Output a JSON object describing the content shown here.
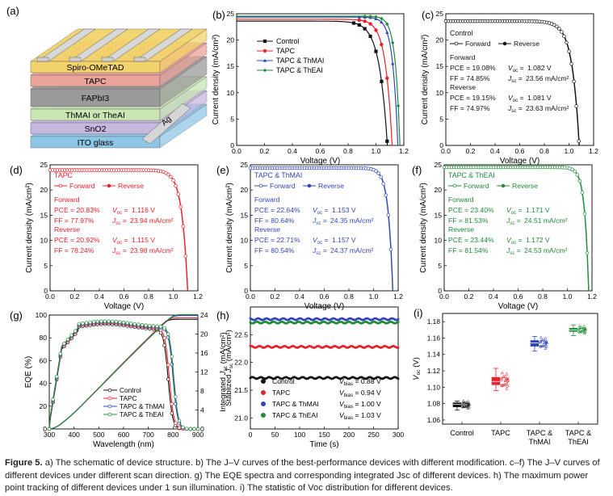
{
  "colors": {
    "black": "#111111",
    "red": "#e8202a",
    "blue": "#3346b8",
    "green": "#1f8a3a"
  },
  "caption": {
    "label": "Figure 5.",
    "text": "a) The schematic of device structure. b) The J–V curves of the best-performance devices with different modification. c–f) The J–V curves of different devices under different scan direction. g) The EQE spectra and corresponding integrated Jsc of different devices. h) The maximum power point tracking of different devices under 1 sun illumination. i) The statistic of Voc distribution for different devices."
  },
  "panel_a": {
    "letter": "(a)",
    "layers": [
      {
        "label": "Spiro-OMeTAD",
        "color": "#f2d36b"
      },
      {
        "label": "TAPC",
        "color": "#e9a39a"
      },
      {
        "label": "FAPbI3",
        "color": "#9a9a9a"
      },
      {
        "label": "ThMAI or TheAI",
        "color": "#c9e6b3"
      },
      {
        "label": "SnO2",
        "color": "#c7b8e0"
      },
      {
        "label": "ITO glass",
        "color": "#8ec7e6"
      }
    ],
    "electrode_label": "Ag"
  },
  "chart_data": [
    {
      "id": "b",
      "letter": "(b)",
      "type": "line",
      "xlabel": "Voltage (V)",
      "ylabel": "Current density (mA/cm²)",
      "xlim": [
        0,
        1.2
      ],
      "ylim": [
        0,
        25
      ],
      "xticks": [
        0.0,
        0.2,
        0.4,
        0.6,
        0.8,
        1.0,
        1.2
      ],
      "yticks": [
        0,
        5,
        10,
        15,
        20,
        25
      ],
      "legend": "top-left",
      "series": [
        {
          "name": "Control",
          "color": "#111111",
          "marker": "square",
          "jsc": 23.6,
          "voc": 1.082,
          "ff": 0.75
        },
        {
          "name": "TAPC",
          "color": "#e8202a",
          "marker": "circle",
          "jsc": 23.95,
          "voc": 1.116,
          "ff": 0.78
        },
        {
          "name": "TAPC & ThMAI",
          "color": "#3346b8",
          "marker": "triangle",
          "jsc": 24.37,
          "voc": 1.157,
          "ff": 0.81
        },
        {
          "name": "TAPC & ThEAI",
          "color": "#1f8a3a",
          "marker": "diamond",
          "jsc": 24.53,
          "voc": 1.172,
          "ff": 0.82
        }
      ]
    },
    {
      "id": "c",
      "letter": "(c)",
      "type": "line",
      "xlabel": "Voltage (V)",
      "ylabel": "Current density (mA/cm²)",
      "xlim": [
        0,
        1.2
      ],
      "ylim": [
        0,
        25
      ],
      "xticks": [
        0.0,
        0.2,
        0.4,
        0.6,
        0.8,
        1.0,
        1.2
      ],
      "yticks": [
        0,
        5,
        10,
        15,
        20,
        25
      ],
      "color": "#111111",
      "device": "Control",
      "legend_forward": "Forward",
      "legend_reverse": "Reverse",
      "forward": {
        "title": "Forward",
        "pce": "PCE = 19.08%",
        "voc": "1.082 V",
        "ff": "FF = 74.85%",
        "jsc": "23.56 mA/cm²"
      },
      "reverse": {
        "title": "Reverse",
        "pce": "PCE = 19.15%",
        "voc": "1.081 V",
        "ff": "FF = 74.97%",
        "jsc": "23.63 mA/cm²"
      },
      "curve": {
        "jsc": 23.6,
        "voc": 1.082,
        "ff": 0.75
      }
    },
    {
      "id": "d",
      "letter": "(d)",
      "type": "line",
      "xlabel": "Voltage (V)",
      "ylabel": "Current density (mA/cm²)",
      "xlim": [
        0,
        1.2
      ],
      "ylim": [
        0,
        25
      ],
      "xticks": [
        0.0,
        0.2,
        0.4,
        0.6,
        0.8,
        1.0,
        1.2
      ],
      "yticks": [
        0,
        5,
        10,
        15,
        20,
        25
      ],
      "color": "#e8202a",
      "device": "TAPC",
      "legend_forward": "Forward",
      "legend_reverse": "Reverse",
      "forward": {
        "title": "Forward",
        "pce": "PCE = 20.83%",
        "voc": "1.116 V",
        "ff": "FF = 77.97%",
        "jsc": "23.94 mA/cm²"
      },
      "reverse": {
        "title": "Reverse",
        "pce": "PCE = 20.92%",
        "voc": "1.115 V",
        "ff": "FF = 78.24%",
        "jsc": "23.98 mA/cm²"
      },
      "curve": {
        "jsc": 23.96,
        "voc": 1.116,
        "ff": 0.78
      }
    },
    {
      "id": "e",
      "letter": "(e)",
      "type": "line",
      "xlabel": "Voltage (V)",
      "ylabel": "Current density (mA/cm²)",
      "xlim": [
        0,
        1.2
      ],
      "ylim": [
        0,
        25
      ],
      "xticks": [
        0.0,
        0.2,
        0.4,
        0.6,
        0.8,
        1.0,
        1.2
      ],
      "yticks": [
        0,
        5,
        10,
        15,
        20,
        25
      ],
      "color": "#3346b8",
      "device": "TAPC & ThMAI",
      "legend_forward": "Forward",
      "legend_reverse": "Reverse",
      "forward": {
        "title": "Forward",
        "pce": "PCE = 22.64%",
        "voc": "1.153 V",
        "ff": "FF = 80.64%",
        "jsc": "24.35 mA/cm²"
      },
      "reverse": {
        "title": "Reverse",
        "pce": "PCE = 22.71%",
        "voc": "1.157 V",
        "ff": "FF = 80.54%",
        "jsc": "24.37 mA/cm²"
      },
      "curve": {
        "jsc": 24.36,
        "voc": 1.155,
        "ff": 0.81
      }
    },
    {
      "id": "f",
      "letter": "(f)",
      "type": "line",
      "xlabel": "Voltage (V)",
      "ylabel": "Current density (mA/cm²)",
      "xlim": [
        0,
        1.2
      ],
      "ylim": [
        0,
        25
      ],
      "xticks": [
        0.0,
        0.2,
        0.4,
        0.6,
        0.8,
        1.0,
        1.2
      ],
      "yticks": [
        0,
        5,
        10,
        15,
        20,
        25
      ],
      "color": "#1f8a3a",
      "device": "TAPC & ThEAI",
      "legend_forward": "Forward",
      "legend_reverse": "Reverse",
      "forward": {
        "title": "Forward",
        "pce": "PCE = 23.40%",
        "voc": "1.171 V",
        "ff": "FF = 81.53%",
        "jsc": "24.51 mA/cm²"
      },
      "reverse": {
        "title": "Reverse",
        "pce": "PCE = 23.44%",
        "voc": "1.172 V",
        "ff": "FF = 81.54%",
        "jsc": "24.53 mA/cm²"
      },
      "curve": {
        "jsc": 24.52,
        "voc": 1.172,
        "ff": 0.82
      }
    },
    {
      "id": "g",
      "letter": "(g)",
      "type": "line",
      "xlabel": "Wavelength (nm)",
      "ylabel": "EQE (%)",
      "y2label": "Integrated Jsc (mA/cm²)",
      "xlim": [
        300,
        900
      ],
      "ylim": [
        0,
        100
      ],
      "y2lim": [
        0,
        24
      ],
      "xticks": [
        300,
        400,
        500,
        600,
        700,
        800,
        900
      ],
      "yticks": [
        0,
        20,
        40,
        60,
        80,
        100
      ],
      "y2ticks": [
        0,
        4,
        8,
        12,
        16,
        20,
        24
      ],
      "legend": "bottom-center",
      "series": [
        {
          "name": "Control",
          "color": "#111111",
          "edge": 780,
          "jsc": 23.1
        },
        {
          "name": "TAPC",
          "color": "#e8202a",
          "edge": 785,
          "jsc": 23.4
        },
        {
          "name": "TAPC & ThMAI",
          "color": "#3346b8",
          "edge": 800,
          "jsc": 23.9
        },
        {
          "name": "TAPC & ThEAI",
          "color": "#1f8a3a",
          "edge": 803,
          "jsc": 24.1
        }
      ]
    },
    {
      "id": "h",
      "letter": "(h)",
      "type": "scatter",
      "xlabel": "Time (s)",
      "ylabel": "Stablized Jsc (mA/cm²)",
      "xlim": [
        0,
        300
      ],
      "ylim": [
        20.8,
        23.0
      ],
      "xticks": [
        0,
        50,
        100,
        150,
        200,
        250,
        300
      ],
      "yticks": [
        21.0,
        21.5,
        22.0,
        22.5
      ],
      "series": [
        {
          "name": "Control",
          "color": "#111111",
          "value": 21.72,
          "vbias": "V",
          "vbias_sub": "bias",
          "vbias_value": " = 0.88 V"
        },
        {
          "name": "TAPC",
          "color": "#e8202a",
          "value": 22.28,
          "vbias": "V",
          "vbias_sub": "bias",
          "vbias_value": " = 0.94 V"
        },
        {
          "name": "TAPC & ThMAI",
          "color": "#3346b8",
          "value": 22.78,
          "vbias": "V",
          "vbias_sub": "bias",
          "vbias_value": " = 1.00 V"
        },
        {
          "name": "TAPC & ThEAI",
          "color": "#1f8a3a",
          "value": 22.72,
          "vbias": "V",
          "vbias_sub": "bias",
          "vbias_value": " = 1.03 V"
        }
      ]
    },
    {
      "id": "i",
      "letter": "(i)",
      "type": "box",
      "ylabel": "Voc (V)",
      "ylim": [
        1.055,
        1.19
      ],
      "yticks": [
        1.06,
        1.08,
        1.1,
        1.12,
        1.14,
        1.16,
        1.18
      ],
      "categories": [
        {
          "label": "Control",
          "label2": "",
          "color": "#111111",
          "median": 1.079,
          "q1": 1.076,
          "q3": 1.081,
          "min": 1.072,
          "max": 1.083
        },
        {
          "label": "TAPC",
          "label2": "",
          "color": "#e8202a",
          "median": 1.107,
          "q1": 1.103,
          "q3": 1.112,
          "min": 1.096,
          "max": 1.123
        },
        {
          "label": "TAPC &",
          "label2": "ThMAI",
          "color": "#3346b8",
          "median": 1.154,
          "q1": 1.15,
          "q3": 1.157,
          "min": 1.144,
          "max": 1.162
        },
        {
          "label": "TAPC &",
          "label2": "ThEAI",
          "color": "#1f8a3a",
          "median": 1.17,
          "q1": 1.168,
          "q3": 1.172,
          "min": 1.163,
          "max": 1.176
        }
      ]
    }
  ]
}
